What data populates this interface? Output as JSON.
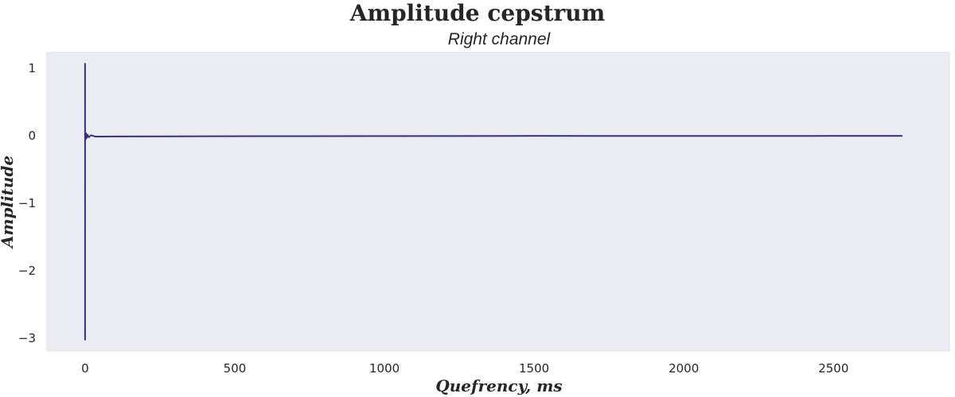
{
  "chart_data": {
    "type": "line",
    "title": "Amplitude cepstrum",
    "subtitle": "Right channel",
    "xlabel": "Quefrency, ms",
    "ylabel": "Amplitude",
    "xlim": [
      -130,
      2890
    ],
    "ylim": [
      -3.2,
      1.25
    ],
    "xticks": [
      0,
      500,
      1000,
      1500,
      2000,
      2500
    ],
    "xtick_labels": [
      "0",
      "500",
      "1000",
      "1500",
      "2000",
      "2500"
    ],
    "yticks": [
      1,
      0,
      -1,
      -2,
      -3
    ],
    "ytick_labels": [
      "1",
      "0",
      "−1",
      "−2",
      "−3"
    ],
    "grid": false,
    "background": "#eaeaf2",
    "series": [
      {
        "color": "#3b2d7f",
        "x": [
          0,
          0.02,
          0.05,
          1,
          2,
          3,
          5,
          8,
          12,
          20,
          35,
          100,
          300,
          600,
          1000,
          1500,
          2000,
          2500,
          2730
        ],
        "y": [
          1.08,
          -3.02,
          0.0,
          0.03,
          -0.05,
          0.04,
          -0.03,
          0.02,
          -0.02,
          0.01,
          -0.01,
          -0.008,
          -0.006,
          -0.004,
          -0.002,
          0.0,
          -0.001,
          0.0,
          0.0
        ]
      }
    ]
  }
}
